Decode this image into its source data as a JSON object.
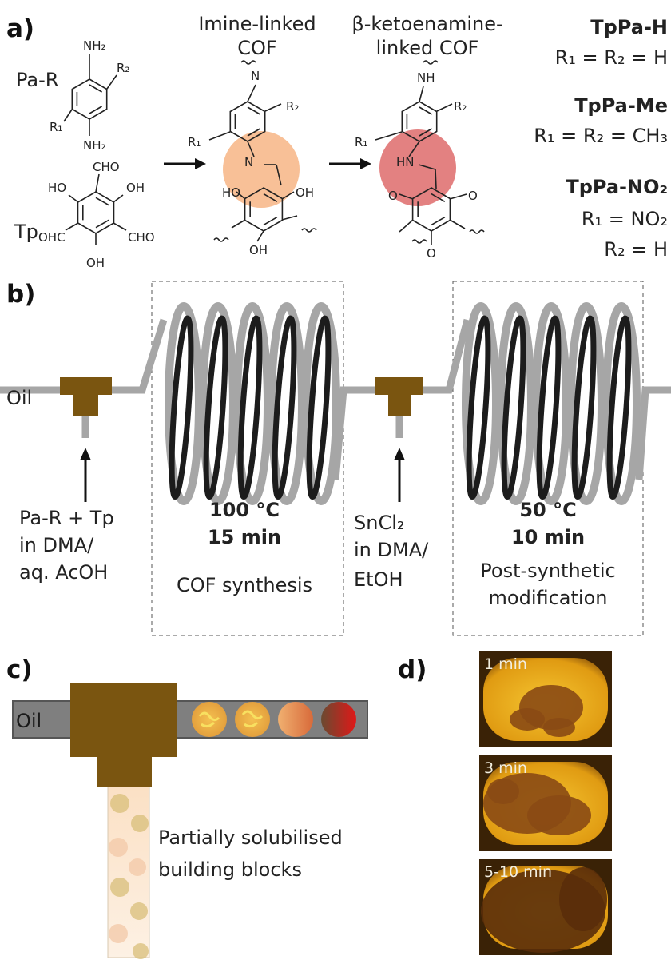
{
  "panel_a": {
    "label": "a)",
    "pa_r": {
      "name": "Pa-R",
      "atoms": [
        "NH₂",
        "R₂",
        "R₁",
        "NH₂"
      ]
    },
    "tp": {
      "name": "Tp",
      "atoms": [
        "CHO",
        "HO",
        "OH",
        "OHC",
        "CHO",
        "OH"
      ]
    },
    "imine_cof": {
      "title": [
        "Imine-linked",
        "COF"
      ],
      "atoms": [
        "N",
        "R₂",
        "R₁",
        "N",
        "HO",
        "OH",
        "OH"
      ]
    },
    "keto_cof": {
      "title": [
        "β-ketoenamine-",
        "linked COF"
      ],
      "atoms": [
        "NH",
        "R₂",
        "R₁",
        "HN",
        "O",
        "O",
        "O"
      ]
    },
    "variants": [
      {
        "name": "TpPa-H",
        "substituents": [
          "R₁ = R₂ = H"
        ]
      },
      {
        "name": "TpPa-Me",
        "substituents": [
          "R₁ = R₂ = CH₃"
        ]
      },
      {
        "name": "TpPa-NO₂",
        "substituents": [
          "R₁ = NO₂",
          "R₂ = H"
        ]
      }
    ]
  },
  "panel_b": {
    "label": "b)",
    "oil": "Oil",
    "inlet_1": [
      "Pa-R + Tp",
      "in DMA/",
      "aq. AcOH"
    ],
    "reactor_1": {
      "temperature": "100 °C",
      "time": "15 min",
      "description": [
        "COF synthesis"
      ]
    },
    "inlet_2": [
      "SnCl₂",
      "in DMA/",
      "EtOH"
    ],
    "reactor_2": {
      "temperature": "50 °C",
      "time": "10 min",
      "description": [
        "Post-synthetic",
        "modification"
      ]
    }
  },
  "panel_c": {
    "label": "c)",
    "oil": "Oil",
    "caption": [
      "Partially solubilised",
      "building blocks"
    ]
  },
  "panel_d": {
    "label": "d)",
    "frames": [
      "1 min",
      "3 min",
      "5-10 min"
    ]
  }
}
